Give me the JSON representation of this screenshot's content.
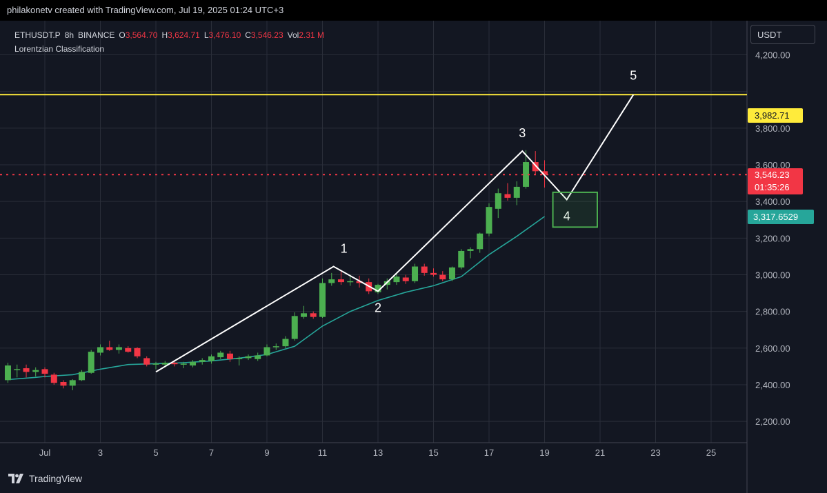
{
  "header": {
    "author_line": "philakonetv created with TradingView.com, Jul 19, 2025 01:24 UTC+3"
  },
  "legend": {
    "symbol": "ETHUSDT.P",
    "interval": "8h",
    "exchange": "BINANCE",
    "open_key": "O",
    "open": "3,564.70",
    "high_key": "H",
    "high": "3,624.71",
    "low_key": "L",
    "low": "3,476.10",
    "close_key": "C",
    "close": "3,546.23",
    "vol_key": "Vol",
    "vol": "2.31 M",
    "indicator": "Lorentzian Classification"
  },
  "currency_button": "USDT",
  "brand": "TradingView",
  "price_tags": {
    "level": "3,982.71",
    "last_price": "3,546.23",
    "countdown": "01:35:26",
    "ma_value": "3,317.6529"
  },
  "colors": {
    "up": "#4caf50",
    "down": "#f23645",
    "ma": "#26a69a",
    "level": "#ffeb3b",
    "wave": "#ffffff",
    "box": "#4caf50",
    "grid": "#2a2e39"
  },
  "chart_data": {
    "type": "candlestick",
    "symbol": "ETHUSDT.P",
    "interval": "8h",
    "y_range": [
      2050,
      4300
    ],
    "x_range_days": [
      29.6,
      26.2
    ],
    "y_ticks": [
      "2,200.00",
      "2,400.00",
      "2,600.00",
      "2,800.00",
      "3,000.00",
      "3,200.00",
      "3,400.00",
      "3,600.00",
      "3,800.00",
      "4,200.00"
    ],
    "y_tick_values": [
      2200,
      2400,
      2600,
      2800,
      3000,
      3200,
      3400,
      3600,
      3800,
      4200
    ],
    "x_ticks": [
      "Jul",
      "3",
      "5",
      "7",
      "9",
      "11",
      "13",
      "15",
      "17",
      "19",
      "21",
      "23",
      "25"
    ],
    "x_tick_days": [
      1,
      3,
      5,
      7,
      9,
      11,
      13,
      15,
      17,
      19,
      21,
      23,
      25
    ],
    "horizontal_level": 3982.71,
    "last_price": 3546.23,
    "candles": [
      {
        "t": 29.67,
        "o": 2425,
        "h": 2520,
        "l": 2410,
        "c": 2505
      },
      {
        "t": 30.0,
        "o": 2480,
        "h": 2510,
        "l": 2440,
        "c": 2485
      },
      {
        "t": 30.33,
        "o": 2490,
        "h": 2510,
        "l": 2440,
        "c": 2470
      },
      {
        "t": 30.67,
        "o": 2470,
        "h": 2495,
        "l": 2445,
        "c": 2480
      },
      {
        "t": 1.0,
        "o": 2485,
        "h": 2495,
        "l": 2440,
        "c": 2460
      },
      {
        "t": 1.33,
        "o": 2455,
        "h": 2465,
        "l": 2400,
        "c": 2410
      },
      {
        "t": 1.67,
        "o": 2415,
        "h": 2425,
        "l": 2380,
        "c": 2395
      },
      {
        "t": 2.0,
        "o": 2395,
        "h": 2430,
        "l": 2370,
        "c": 2425
      },
      {
        "t": 2.33,
        "o": 2425,
        "h": 2480,
        "l": 2420,
        "c": 2470
      },
      {
        "t": 2.67,
        "o": 2465,
        "h": 2590,
        "l": 2460,
        "c": 2580
      },
      {
        "t": 3.0,
        "o": 2575,
        "h": 2620,
        "l": 2560,
        "c": 2605
      },
      {
        "t": 3.33,
        "o": 2605,
        "h": 2640,
        "l": 2585,
        "c": 2590
      },
      {
        "t": 3.67,
        "o": 2590,
        "h": 2620,
        "l": 2570,
        "c": 2605
      },
      {
        "t": 4.0,
        "o": 2600,
        "h": 2610,
        "l": 2575,
        "c": 2580
      },
      {
        "t": 4.33,
        "o": 2600,
        "h": 2605,
        "l": 2545,
        "c": 2555
      },
      {
        "t": 4.67,
        "o": 2545,
        "h": 2555,
        "l": 2500,
        "c": 2510
      },
      {
        "t": 5.0,
        "o": 2510,
        "h": 2525,
        "l": 2485,
        "c": 2515
      },
      {
        "t": 5.33,
        "o": 2510,
        "h": 2530,
        "l": 2495,
        "c": 2520
      },
      {
        "t": 5.67,
        "o": 2520,
        "h": 2530,
        "l": 2500,
        "c": 2512
      },
      {
        "t": 6.0,
        "o": 2510,
        "h": 2525,
        "l": 2490,
        "c": 2515
      },
      {
        "t": 6.33,
        "o": 2505,
        "h": 2535,
        "l": 2495,
        "c": 2525
      },
      {
        "t": 6.67,
        "o": 2525,
        "h": 2545,
        "l": 2510,
        "c": 2535
      },
      {
        "t": 7.0,
        "o": 2530,
        "h": 2565,
        "l": 2515,
        "c": 2555
      },
      {
        "t": 7.33,
        "o": 2550,
        "h": 2585,
        "l": 2540,
        "c": 2575
      },
      {
        "t": 7.67,
        "o": 2570,
        "h": 2585,
        "l": 2525,
        "c": 2540
      },
      {
        "t": 8.0,
        "o": 2540,
        "h": 2555,
        "l": 2505,
        "c": 2545
      },
      {
        "t": 8.33,
        "o": 2545,
        "h": 2565,
        "l": 2535,
        "c": 2555
      },
      {
        "t": 8.67,
        "o": 2540,
        "h": 2575,
        "l": 2530,
        "c": 2560
      },
      {
        "t": 9.0,
        "o": 2560,
        "h": 2620,
        "l": 2555,
        "c": 2605
      },
      {
        "t": 9.33,
        "o": 2605,
        "h": 2625,
        "l": 2590,
        "c": 2610
      },
      {
        "t": 9.67,
        "o": 2610,
        "h": 2665,
        "l": 2600,
        "c": 2650
      },
      {
        "t": 10.0,
        "o": 2650,
        "h": 2795,
        "l": 2640,
        "c": 2775
      },
      {
        "t": 10.33,
        "o": 2770,
        "h": 2830,
        "l": 2760,
        "c": 2790
      },
      {
        "t": 10.67,
        "o": 2790,
        "h": 2800,
        "l": 2760,
        "c": 2770
      },
      {
        "t": 11.0,
        "o": 2770,
        "h": 2980,
        "l": 2765,
        "c": 2955
      },
      {
        "t": 11.33,
        "o": 2955,
        "h": 3010,
        "l": 2940,
        "c": 2975
      },
      {
        "t": 11.67,
        "o": 2975,
        "h": 3020,
        "l": 2945,
        "c": 2960
      },
      {
        "t": 12.0,
        "o": 2960,
        "h": 3000,
        "l": 2940,
        "c": 2965
      },
      {
        "t": 12.33,
        "o": 2965,
        "h": 2995,
        "l": 2930,
        "c": 2955
      },
      {
        "t": 12.67,
        "o": 2960,
        "h": 2980,
        "l": 2895,
        "c": 2910
      },
      {
        "t": 13.0,
        "o": 2905,
        "h": 2950,
        "l": 2895,
        "c": 2945
      },
      {
        "t": 13.33,
        "o": 2945,
        "h": 2980,
        "l": 2920,
        "c": 2965
      },
      {
        "t": 13.67,
        "o": 2960,
        "h": 3010,
        "l": 2945,
        "c": 2990
      },
      {
        "t": 14.0,
        "o": 2985,
        "h": 3000,
        "l": 2950,
        "c": 2965
      },
      {
        "t": 14.33,
        "o": 2965,
        "h": 3060,
        "l": 2955,
        "c": 3045
      },
      {
        "t": 14.67,
        "o": 3045,
        "h": 3060,
        "l": 2995,
        "c": 3010
      },
      {
        "t": 15.0,
        "o": 3010,
        "h": 3035,
        "l": 2990,
        "c": 3000
      },
      {
        "t": 15.33,
        "o": 3000,
        "h": 3020,
        "l": 2965,
        "c": 2975
      },
      {
        "t": 15.67,
        "o": 2975,
        "h": 3045,
        "l": 2965,
        "c": 3040
      },
      {
        "t": 16.0,
        "o": 3040,
        "h": 3140,
        "l": 3030,
        "c": 3130
      },
      {
        "t": 16.33,
        "o": 3130,
        "h": 3150,
        "l": 3090,
        "c": 3140
      },
      {
        "t": 16.67,
        "o": 3140,
        "h": 3230,
        "l": 3120,
        "c": 3225
      },
      {
        "t": 17.0,
        "o": 3225,
        "h": 3390,
        "l": 3210,
        "c": 3370
      },
      {
        "t": 17.33,
        "o": 3360,
        "h": 3470,
        "l": 3310,
        "c": 3445
      },
      {
        "t": 17.67,
        "o": 3440,
        "h": 3500,
        "l": 3405,
        "c": 3420
      },
      {
        "t": 18.0,
        "o": 3420,
        "h": 3510,
        "l": 3380,
        "c": 3480
      },
      {
        "t": 18.33,
        "o": 3480,
        "h": 3680,
        "l": 3470,
        "c": 3615
      },
      {
        "t": 18.67,
        "o": 3615,
        "h": 3675,
        "l": 3545,
        "c": 3565
      },
      {
        "t": 19.0,
        "o": 3565,
        "h": 3625,
        "l": 3476,
        "c": 3546
      }
    ],
    "moving_average": [
      [
        29.67,
        2428
      ],
      [
        30.67,
        2440
      ],
      [
        1.0,
        2445
      ],
      [
        2.0,
        2455
      ],
      [
        3.0,
        2485
      ],
      [
        4.0,
        2510
      ],
      [
        5.0,
        2515
      ],
      [
        6.0,
        2520
      ],
      [
        7.0,
        2530
      ],
      [
        8.0,
        2545
      ],
      [
        9.0,
        2565
      ],
      [
        10.0,
        2610
      ],
      [
        11.0,
        2720
      ],
      [
        12.0,
        2800
      ],
      [
        13.0,
        2860
      ],
      [
        14.0,
        2905
      ],
      [
        15.0,
        2940
      ],
      [
        16.0,
        2990
      ],
      [
        17.0,
        3110
      ],
      [
        18.0,
        3210
      ],
      [
        19.0,
        3318
      ]
    ],
    "elliott_wave": [
      {
        "t": 5.0,
        "v": 2470,
        "label": ""
      },
      {
        "t": 11.4,
        "v": 3045,
        "label": "1"
      },
      {
        "t": 13.0,
        "v": 2910,
        "label": "2"
      },
      {
        "t": 18.2,
        "v": 3675,
        "label": "3"
      },
      {
        "t": 19.8,
        "v": 3410,
        "label": "4"
      },
      {
        "t": 22.2,
        "v": 3982.71,
        "label": "5"
      }
    ],
    "wave4_box": {
      "t0": 19.3,
      "t1": 20.9,
      "v_low": 3260,
      "v_high": 3450
    }
  }
}
